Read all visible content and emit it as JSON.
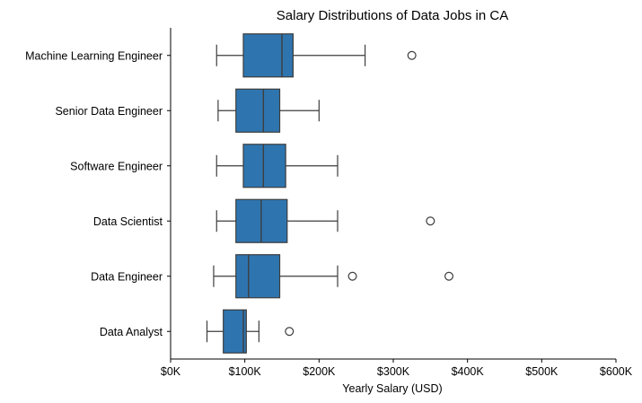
{
  "chart_data": {
    "type": "boxplot",
    "orientation": "horizontal",
    "title": "Salary Distributions of Data Jobs in CA",
    "xlabel": "Yearly Salary (USD)",
    "ylabel": "",
    "xlim": [
      0,
      600000
    ],
    "xticks": [
      0,
      100000,
      200000,
      300000,
      400000,
      500000,
      600000
    ],
    "xtick_labels": [
      "$0K",
      "$100K",
      "$200K",
      "$300K",
      "$400K",
      "$500K",
      "$600K"
    ],
    "grid": false,
    "box_color": "#2e75b0",
    "line_color": "#3d3d3d",
    "categories": [
      "Machine Learning Engineer",
      "Senior Data Engineer",
      "Software Engineer",
      "Data Scientist",
      "Data Engineer",
      "Data Analyst"
    ],
    "boxes": [
      {
        "whisker_low": 62000,
        "q1": 98000,
        "median": 150000,
        "q3": 165000,
        "whisker_high": 262000,
        "outliers": [
          325000
        ]
      },
      {
        "whisker_low": 64000,
        "q1": 88000,
        "median": 125000,
        "q3": 147000,
        "whisker_high": 200000,
        "outliers": []
      },
      {
        "whisker_low": 62000,
        "q1": 98000,
        "median": 125000,
        "q3": 155000,
        "whisker_high": 225000,
        "outliers": []
      },
      {
        "whisker_low": 62000,
        "q1": 88000,
        "median": 122000,
        "q3": 157000,
        "whisker_high": 225000,
        "outliers": [
          350000
        ]
      },
      {
        "whisker_low": 58000,
        "q1": 88000,
        "median": 105000,
        "q3": 147000,
        "whisker_high": 225000,
        "outliers": [
          245000,
          375000
        ]
      },
      {
        "whisker_low": 49000,
        "q1": 71000,
        "median": 98000,
        "q3": 102000,
        "whisker_high": 119000,
        "outliers": [
          160000
        ]
      }
    ]
  }
}
